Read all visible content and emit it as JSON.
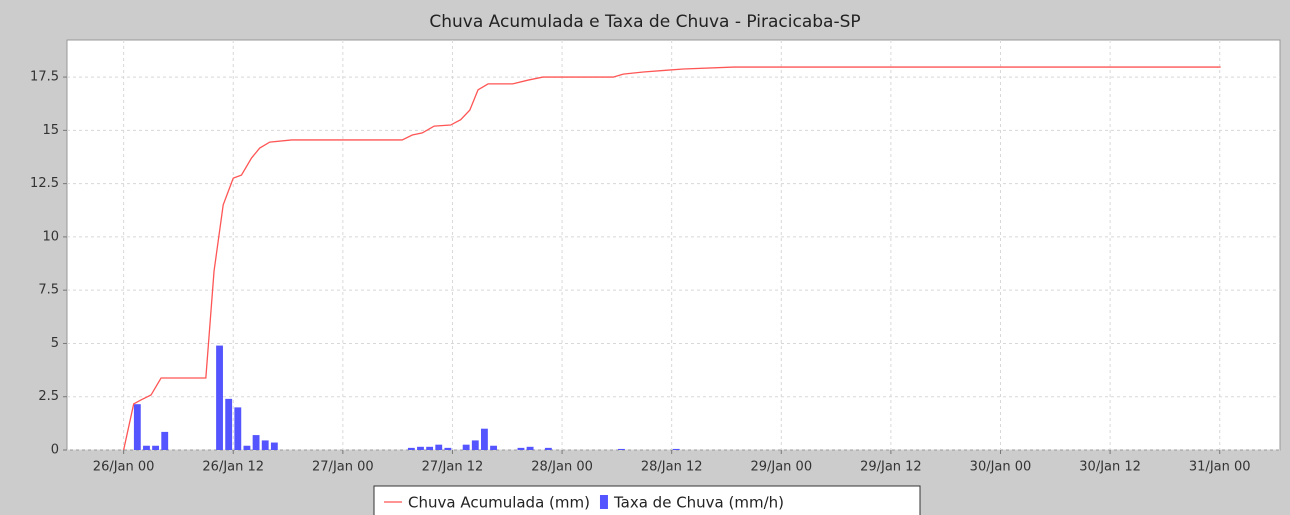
{
  "chart_data": {
    "type": "line_bar",
    "title": "Chuva Acumulada e Taxa de Chuva - Piracicaba-SP",
    "xlim": [
      -6.2,
      126.6
    ],
    "xticks": [
      {
        "value": 0,
        "label": "26/Jan 00"
      },
      {
        "value": 12,
        "label": "26/Jan 12"
      },
      {
        "value": 24,
        "label": "27/Jan 00"
      },
      {
        "value": 36,
        "label": "27/Jan 12"
      },
      {
        "value": 48,
        "label": "28/Jan 00"
      },
      {
        "value": 60,
        "label": "28/Jan 12"
      },
      {
        "value": 72,
        "label": "29/Jan 00"
      },
      {
        "value": 84,
        "label": "29/Jan 12"
      },
      {
        "value": 96,
        "label": "30/Jan 00"
      },
      {
        "value": 108,
        "label": "30/Jan 12"
      },
      {
        "value": 120,
        "label": "31/Jan 00"
      }
    ],
    "ylim": [
      0,
      19.24
    ],
    "yticks": [
      0,
      2.5,
      5,
      7.5,
      10,
      12.5,
      15,
      17.5
    ],
    "grid": true,
    "legend": "bottom",
    "series": [
      {
        "name": "Chuva Acumulada (mm)",
        "type": "line",
        "color": "#ff5555",
        "x": [
          0,
          1.1,
          1.9,
          3.0,
          4.1,
          9.0,
          9.9,
          10.9,
          12.0,
          12.9,
          14.0,
          14.9,
          16.0,
          18.4,
          30.5,
          31.6,
          32.7,
          34.0,
          35.8,
          36.9,
          37.9,
          38.8,
          39.9,
          42.6,
          44.3,
          45.9,
          53.6,
          54.7,
          56.9,
          59.7,
          61.3,
          66.8,
          120.1
        ],
        "values": [
          0,
          2.16,
          2.35,
          2.58,
          3.38,
          3.38,
          8.4,
          11.5,
          12.76,
          12.9,
          13.7,
          14.17,
          14.45,
          14.55,
          14.55,
          14.78,
          14.88,
          15.2,
          15.25,
          15.5,
          15.95,
          16.9,
          17.18,
          17.18,
          17.36,
          17.5,
          17.5,
          17.64,
          17.74,
          17.83,
          17.88,
          17.97,
          17.97
        ]
      },
      {
        "name": "Taxa de Chuva (mm/h)",
        "type": "bar",
        "color": "#5555ff",
        "x": [
          1.5,
          2.5,
          3.5,
          4.5,
          10.5,
          11.5,
          12.5,
          13.5,
          14.5,
          15.5,
          16.5,
          31.5,
          32.5,
          33.5,
          34.5,
          35.5,
          37.5,
          38.5,
          39.5,
          40.5,
          43.5,
          44.5,
          46.5,
          54.5,
          60.5
        ],
        "values": [
          2.15,
          0.2,
          0.2,
          0.85,
          4.9,
          2.4,
          2.0,
          0.2,
          0.7,
          0.45,
          0.35,
          0.1,
          0.15,
          0.15,
          0.25,
          0.1,
          0.25,
          0.45,
          1.0,
          0.2,
          0.1,
          0.15,
          0.1,
          0.05,
          0.05
        ]
      }
    ]
  }
}
